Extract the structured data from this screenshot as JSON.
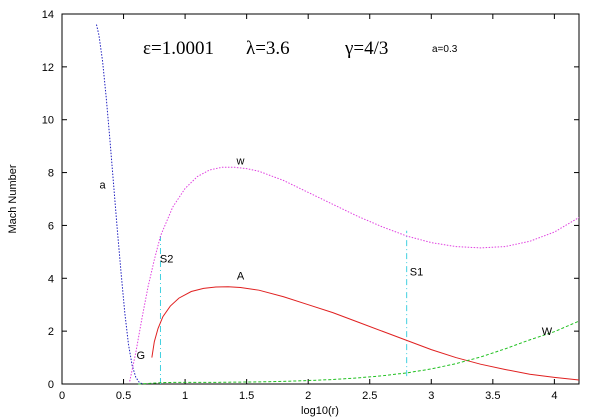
{
  "chart_data": {
    "type": "line",
    "xlabel": "log10(r)",
    "ylabel": "Mach Number",
    "xlim": [
      0,
      4.2
    ],
    "ylim": [
      0,
      14
    ],
    "x_ticks": [
      0,
      0.5,
      1,
      1.5,
      2,
      2.5,
      3,
      3.5,
      4
    ],
    "x_tick_labels": [
      "0",
      "0.5",
      "1",
      "1.5",
      "2",
      "2.5",
      "3",
      "3.5",
      "4"
    ],
    "y_ticks": [
      0,
      2,
      4,
      6,
      8,
      10,
      12,
      14
    ],
    "y_tick_labels": [
      "0",
      "2",
      "4",
      "6",
      "8",
      "10",
      "12",
      "14"
    ],
    "grid": false,
    "parameters": [
      "ε=1.0001",
      "λ=3.6",
      "γ=4/3"
    ],
    "parameter_small": "a=0.3",
    "series": [
      {
        "name": "a",
        "color": "#2020c0",
        "dash": "dotted",
        "x": [
          0.28,
          0.3,
          0.33,
          0.36,
          0.39,
          0.42,
          0.45,
          0.48,
          0.51,
          0.54,
          0.57,
          0.6,
          0.63,
          0.66
        ],
        "y": [
          13.6,
          13.2,
          12.2,
          10.8,
          9.2,
          7.5,
          5.8,
          4.2,
          2.7,
          1.5,
          0.7,
          0.25,
          0.05,
          0.0
        ]
      },
      {
        "name": "w",
        "color": "#e040e0",
        "dash": "dotted",
        "x": [
          0.55,
          0.6,
          0.65,
          0.7,
          0.75,
          0.8,
          0.9,
          1.0,
          1.1,
          1.2,
          1.3,
          1.4,
          1.5,
          1.6,
          1.8,
          2.0,
          2.2,
          2.4,
          2.6,
          2.8,
          3.0,
          3.2,
          3.4,
          3.6,
          3.8,
          4.0,
          4.2
        ],
        "y": [
          0.1,
          1.2,
          2.5,
          3.7,
          4.7,
          5.6,
          6.7,
          7.4,
          7.85,
          8.1,
          8.2,
          8.2,
          8.15,
          8.05,
          7.7,
          7.25,
          6.8,
          6.35,
          5.95,
          5.6,
          5.35,
          5.2,
          5.15,
          5.2,
          5.4,
          5.75,
          6.3
        ]
      },
      {
        "name": "A",
        "color": "#e02020",
        "dash": "solid",
        "x": [
          0.73,
          0.75,
          0.78,
          0.82,
          0.88,
          0.95,
          1.05,
          1.15,
          1.25,
          1.35,
          1.45,
          1.6,
          1.8,
          2.0,
          2.2,
          2.4,
          2.6,
          2.8,
          3.0,
          3.2,
          3.4,
          3.6,
          3.8,
          4.0,
          4.2
        ],
        "y": [
          1.0,
          1.6,
          2.1,
          2.55,
          2.95,
          3.25,
          3.5,
          3.62,
          3.67,
          3.68,
          3.65,
          3.55,
          3.3,
          3.0,
          2.7,
          2.35,
          2.0,
          1.65,
          1.3,
          1.0,
          0.75,
          0.55,
          0.37,
          0.25,
          0.15
        ]
      },
      {
        "name": "W",
        "color": "#20c020",
        "dash": "dashed",
        "x": [
          0.62,
          0.7,
          0.8,
          0.9,
          1.0,
          1.2,
          1.4,
          1.6,
          1.8,
          2.0,
          2.2,
          2.4,
          2.6,
          2.8,
          3.0,
          3.2,
          3.4,
          3.6,
          3.8,
          4.0,
          4.2
        ],
        "y": [
          0.0,
          0.02,
          0.05,
          0.06,
          0.06,
          0.06,
          0.07,
          0.08,
          0.1,
          0.13,
          0.17,
          0.23,
          0.31,
          0.42,
          0.57,
          0.77,
          1.02,
          1.33,
          1.67,
          1.98,
          2.38
        ]
      }
    ],
    "shocks": [
      {
        "name": "S2",
        "x": 0.8,
        "y_bottom": 0.0,
        "y_top": 5.6,
        "color": "#40d0e0"
      },
      {
        "name": "S1",
        "x": 2.8,
        "y_bottom": 0.3,
        "y_top": 5.8,
        "color": "#40d0e0"
      }
    ],
    "labels": [
      {
        "text": "a",
        "x": 0.33,
        "y": 7.4
      },
      {
        "text": "w",
        "x": 1.45,
        "y": 8.3
      },
      {
        "text": "A",
        "x": 1.45,
        "y": 3.95
      },
      {
        "text": "S2",
        "x": 0.85,
        "y": 4.6
      },
      {
        "text": "S1",
        "x": 2.88,
        "y": 4.1
      },
      {
        "text": "G",
        "x": 0.64,
        "y": 0.95
      },
      {
        "text": "W",
        "x": 3.94,
        "y": 1.85
      }
    ]
  }
}
